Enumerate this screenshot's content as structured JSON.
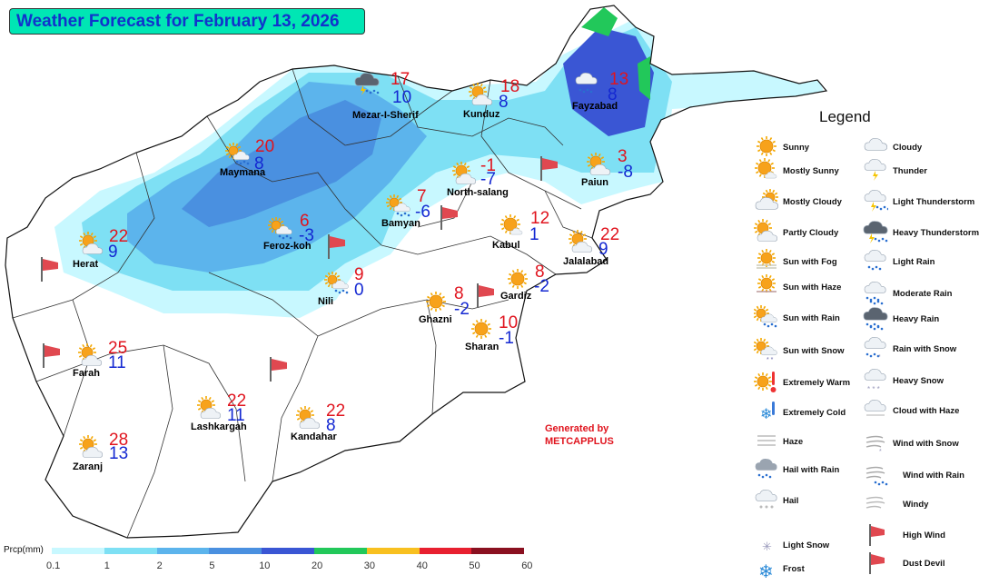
{
  "title": "Weather Forecast for February 13, 2026",
  "colors": {
    "country_fill": "#ffffff",
    "border": "#222222",
    "temp_max": "#e0141e",
    "temp_min": "#1428d2",
    "title_bg": "#00e6b4",
    "title_text": "#1133cc"
  },
  "cities": [
    {
      "name": "Mezar-I-Sherif",
      "max": "17",
      "min": "10",
      "icon": "heavy-thunderstorm-icon"
    },
    {
      "name": "Kunduz",
      "max": "18",
      "min": "8",
      "icon": "partly-cloudy-icon"
    },
    {
      "name": "Fayzabad",
      "max": "13",
      "min": "8",
      "icon": "light-rain-icon"
    },
    {
      "name": "Maymana",
      "max": "20",
      "min": "8",
      "icon": "sun-with-rain-icon"
    },
    {
      "name": "North-salang",
      "max": "-1",
      "min": "-7",
      "icon": "partly-cloudy-icon"
    },
    {
      "name": "Paiun",
      "max": "3",
      "min": "-8",
      "icon": "partly-cloudy-icon"
    },
    {
      "name": "Bamyan",
      "max": "7",
      "min": "-6",
      "icon": "sun-with-rain-icon"
    },
    {
      "name": "Kabul",
      "max": "12",
      "min": "1",
      "icon": "mostly-sunny-icon"
    },
    {
      "name": "Herat",
      "max": "22",
      "min": "9",
      "icon": "partly-cloudy-icon"
    },
    {
      "name": "Feroz-koh",
      "max": "6",
      "min": "-3",
      "icon": "sun-with-rain-icon"
    },
    {
      "name": "Jalalabad",
      "max": "22",
      "min": "9",
      "icon": "partly-cloudy-icon"
    },
    {
      "name": "Nili",
      "max": "9",
      "min": "0",
      "icon": "sun-with-rain-icon"
    },
    {
      "name": "Gardiz",
      "max": "8",
      "min": "-2",
      "icon": "sunny-icon"
    },
    {
      "name": "Ghazni",
      "max": "8",
      "min": "-2",
      "icon": "sunny-icon"
    },
    {
      "name": "Sharan",
      "max": "10",
      "min": "-1",
      "icon": "sunny-icon"
    },
    {
      "name": "Farah",
      "max": "25",
      "min": "11",
      "icon": "partly-cloudy-icon"
    },
    {
      "name": "Lashkargah",
      "max": "22",
      "min": "11",
      "icon": "partly-cloudy-icon"
    },
    {
      "name": "Kandahar",
      "max": "22",
      "min": "8",
      "icon": "partly-cloudy-icon"
    },
    {
      "name": "Zaranj",
      "max": "28",
      "min": "13",
      "icon": "partly-cloudy-icon"
    }
  ],
  "legend": {
    "title": "Legend",
    "items": [
      {
        "label": "Sunny",
        "icon": "sunny-icon"
      },
      {
        "label": "Mostly Sunny",
        "icon": "mostly-sunny-icon"
      },
      {
        "label": "Mostly Cloudy",
        "icon": "mostly-cloudy-icon"
      },
      {
        "label": "Partly Cloudy",
        "icon": "partly-cloudy-icon"
      },
      {
        "label": "Sun with Fog",
        "icon": "sun-with-fog-icon"
      },
      {
        "label": "Sun with Haze",
        "icon": "sun-with-haze-icon"
      },
      {
        "label": "Sun with Rain",
        "icon": "sun-with-rain-icon"
      },
      {
        "label": "Sun with Snow",
        "icon": "sun-with-snow-icon"
      },
      {
        "label": "Extremely Warm",
        "icon": "extremely-warm-icon"
      },
      {
        "label": "Extremely Cold",
        "icon": "extremely-cold-icon"
      },
      {
        "label": "Haze",
        "icon": "haze-icon"
      },
      {
        "label": "Hail with Rain",
        "icon": "hail-with-rain-icon"
      },
      {
        "label": "Hail",
        "icon": "hail-icon"
      },
      {
        "label": "Light Snow",
        "icon": "light-snow-icon"
      },
      {
        "label": "Frost",
        "icon": "frost-icon"
      },
      {
        "label": "Cloudy",
        "icon": "cloudy-icon"
      },
      {
        "label": "Thunder",
        "icon": "thunder-icon"
      },
      {
        "label": "Light Thunderstorm",
        "icon": "light-thunderstorm-icon"
      },
      {
        "label": "Heavy Thunderstorm",
        "icon": "heavy-thunderstorm-icon"
      },
      {
        "label": "Light Rain",
        "icon": "light-rain-icon"
      },
      {
        "label": "Moderate Rain",
        "icon": "moderate-rain-icon"
      },
      {
        "label": "Heavy Rain",
        "icon": "heavy-rain-icon"
      },
      {
        "label": "Rain with Snow",
        "icon": "rain-with-snow-icon"
      },
      {
        "label": "Heavy Snow",
        "icon": "heavy-snow-icon"
      },
      {
        "label": "Cloud with Haze",
        "icon": "cloud-with-haze-icon"
      },
      {
        "label": "Wind with Snow",
        "icon": "wind-with-snow-icon"
      },
      {
        "label": "Wind with Rain",
        "icon": "wind-with-rain-icon"
      },
      {
        "label": "Windy",
        "icon": "windy-icon"
      },
      {
        "label": "High Wind",
        "icon": "high-wind-icon"
      },
      {
        "label": "Dust Devil",
        "icon": "dust-devil-icon"
      }
    ]
  },
  "generated_by": {
    "line1": "Generated by",
    "line2": "METCAPPLUS"
  },
  "colorbar": {
    "label": "Prcp(mm)",
    "ticks": [
      "0.1",
      "1",
      "2",
      "5",
      "10",
      "20",
      "30",
      "40",
      "50",
      "60"
    ],
    "colors": [
      "#c8f8ff",
      "#7ee0f4",
      "#5cb4ec",
      "#4a90e0",
      "#3a56d4",
      "#22c85a",
      "#f8c020",
      "#e82030",
      "#8a1020"
    ]
  }
}
